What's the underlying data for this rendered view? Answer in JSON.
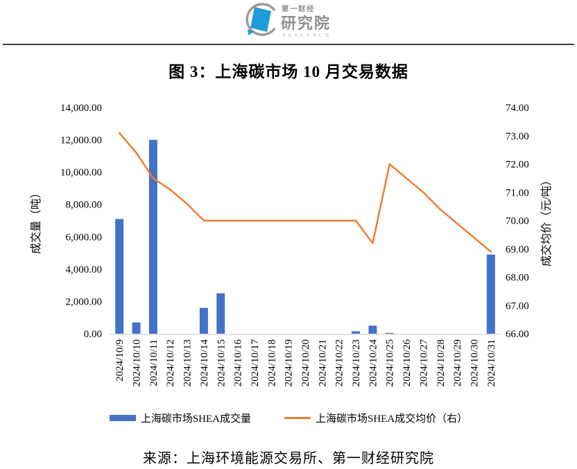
{
  "header": {
    "logo": {
      "line1": "第一财经",
      "line2": "研究院",
      "line3": "RESEARCH"
    }
  },
  "figure": {
    "title": "图 3：上海碳市场 10 月交易数据",
    "source": "来源：上海环境能源交易所、第一财经研究院"
  },
  "chart_data": {
    "type": "bar",
    "title": "图 3：上海碳市场 10 月交易数据",
    "categories": [
      "2024/10/9",
      "2024/10/10",
      "2024/10/11",
      "2024/10/12",
      "2024/10/13",
      "2024/10/14",
      "2024/10/15",
      "2024/10/16",
      "2024/10/17",
      "2024/10/18",
      "2024/10/19",
      "2024/10/20",
      "2024/10/21",
      "2024/10/22",
      "2024/10/23",
      "2024/10/24",
      "2024/10/25",
      "2024/10/26",
      "2024/10/27",
      "2024/10/28",
      "2024/10/29",
      "2024/10/30",
      "2024/10/31"
    ],
    "series": [
      {
        "name": "上海碳市场SHEA成交量",
        "type": "bar",
        "axis": "left",
        "color": "#4472C4",
        "values": [
          7100,
          700,
          12000,
          0,
          0,
          1600,
          2500,
          0,
          0,
          0,
          0,
          0,
          0,
          0,
          150,
          500,
          50,
          0,
          0,
          0,
          0,
          0,
          4900
        ]
      },
      {
        "name": "上海碳市场SHEA成交均价（右）",
        "type": "line",
        "axis": "right",
        "color": "#ED7D31",
        "values": [
          73.1,
          72.4,
          71.5,
          71.1,
          70.6,
          70.0,
          70.0,
          70.0,
          70.0,
          70.0,
          70.0,
          70.0,
          70.0,
          70.0,
          70.0,
          69.2,
          72.0,
          71.5,
          71.0,
          70.4,
          69.9,
          69.4,
          68.9
        ]
      }
    ],
    "axes": {
      "left": {
        "label": "成交量（吨）",
        "min": 0,
        "max": 14000,
        "step": 2000,
        "tick_format": "#,##0.00"
      },
      "right": {
        "label": "成交均价（元/吨）",
        "min": 66,
        "max": 74,
        "step": 1,
        "tick_format": "0.00"
      }
    },
    "grid": false,
    "legend_position": "bottom"
  },
  "colors": {
    "bar": "#4472C4",
    "line": "#ED7D31",
    "axis_line": "#D9D9D9",
    "rule": "#3F3F3F",
    "logo_blue": "#1E9CD9",
    "logo_gray": "#9A9A9A",
    "logo_text_gray": "#8F8F8F",
    "logo_research_gray": "#BDBDBD"
  }
}
